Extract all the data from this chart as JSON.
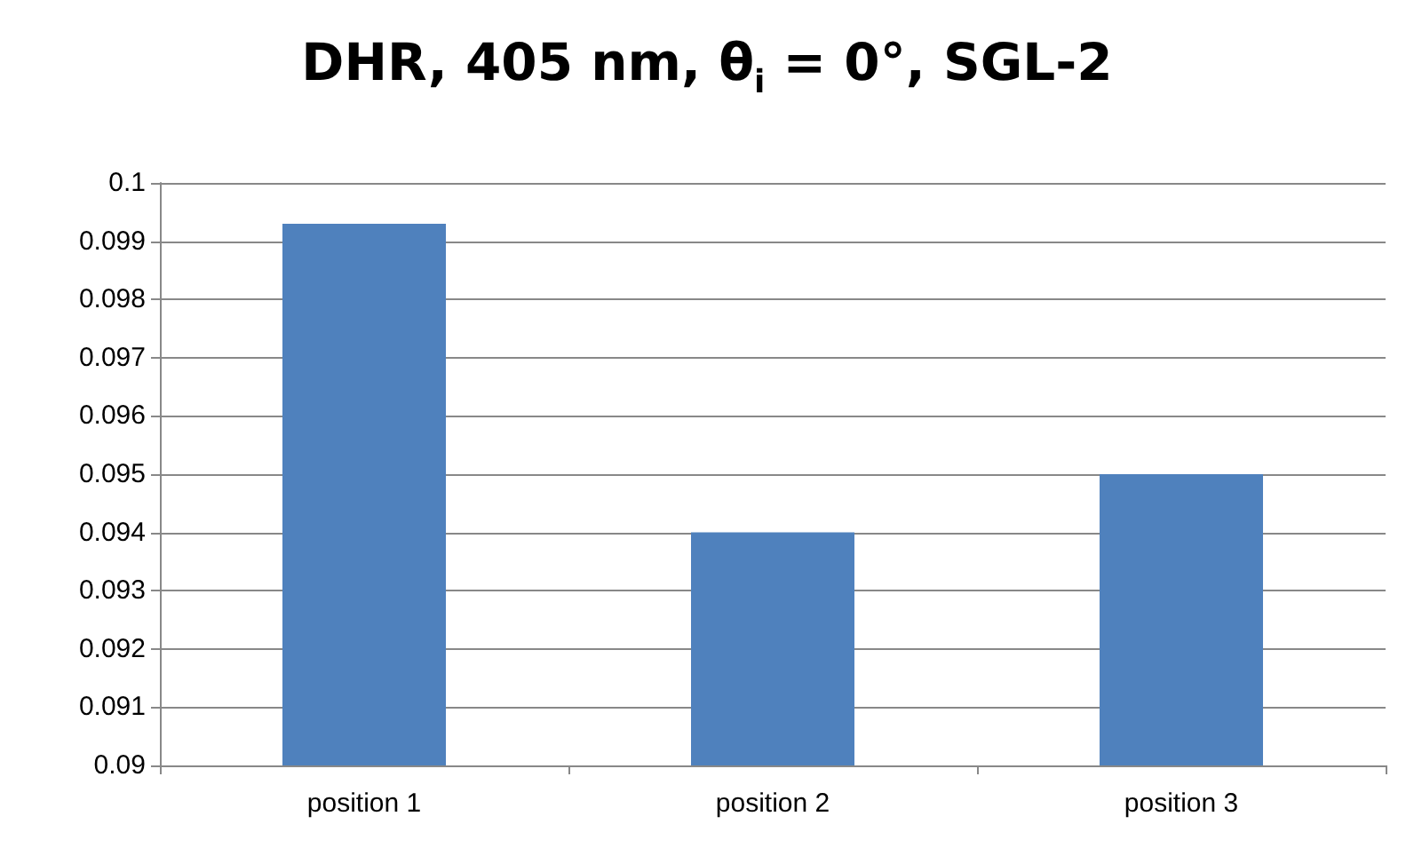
{
  "chart_data": {
    "type": "bar",
    "title": "DHR, 405 nm, θ$_{i}$ = 0°, SGL-2",
    "categories": [
      "position 1",
      "position 2",
      "position 3"
    ],
    "values": [
      0.0993,
      0.094,
      0.095
    ],
    "color": "#4f81bd",
    "ylim": [
      0.09,
      0.1
    ],
    "yticks": [
      0.09,
      0.091,
      0.092,
      0.093,
      0.094,
      0.095,
      0.096,
      0.097,
      0.098,
      0.099,
      0.1
    ],
    "grid": "y"
  }
}
